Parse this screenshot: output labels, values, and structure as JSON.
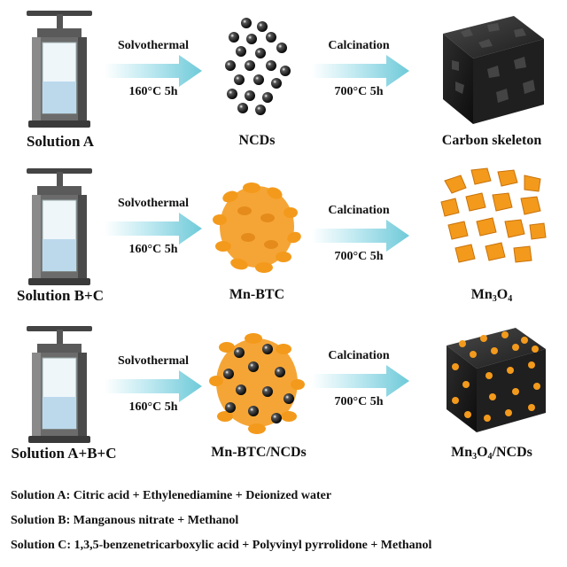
{
  "rows": [
    {
      "solution": "Solution A",
      "step1": {
        "name": "Solvothermal",
        "condition": "160°C 5h"
      },
      "intermediate": "NCDs",
      "step2": {
        "name": "Calcination",
        "condition": "700°C 5h"
      },
      "product": {
        "main": "Carbon skeleton"
      }
    },
    {
      "solution": "Solution B+C",
      "step1": {
        "name": "Solvothermal",
        "condition": "160°C 5h"
      },
      "intermediate": "Mn-BTC",
      "step2": {
        "name": "Calcination",
        "condition": "700°C 5h"
      },
      "product": {
        "p1": "Mn",
        "s1": "3",
        "p2": "O",
        "s2": "4",
        "p3": ""
      }
    },
    {
      "solution": "Solution A+B+C",
      "step1": {
        "name": "Solvothermal",
        "condition": "160°C 5h"
      },
      "intermediate": "Mn-BTC/NCDs",
      "step2": {
        "name": "Calcination",
        "condition": "700°C 5h"
      },
      "product": {
        "p1": "Mn",
        "s1": "3",
        "p2": "O",
        "s2": "4",
        "p3": "/NCDs"
      }
    }
  ],
  "legend": [
    "Solution A: Citric acid + Ethylenediamine + Deionized water",
    "Solution B: Manganous nitrate + Methanol",
    "Solution C: 1,3,5-benzenetricarboxylic acid + Polyvinyl pyrrolidone + Methanol"
  ],
  "colors": {
    "arrow": "#7fd3e0",
    "ncd": "#111111",
    "mnbtc": "#f39a1c",
    "carbon": "#262626"
  }
}
